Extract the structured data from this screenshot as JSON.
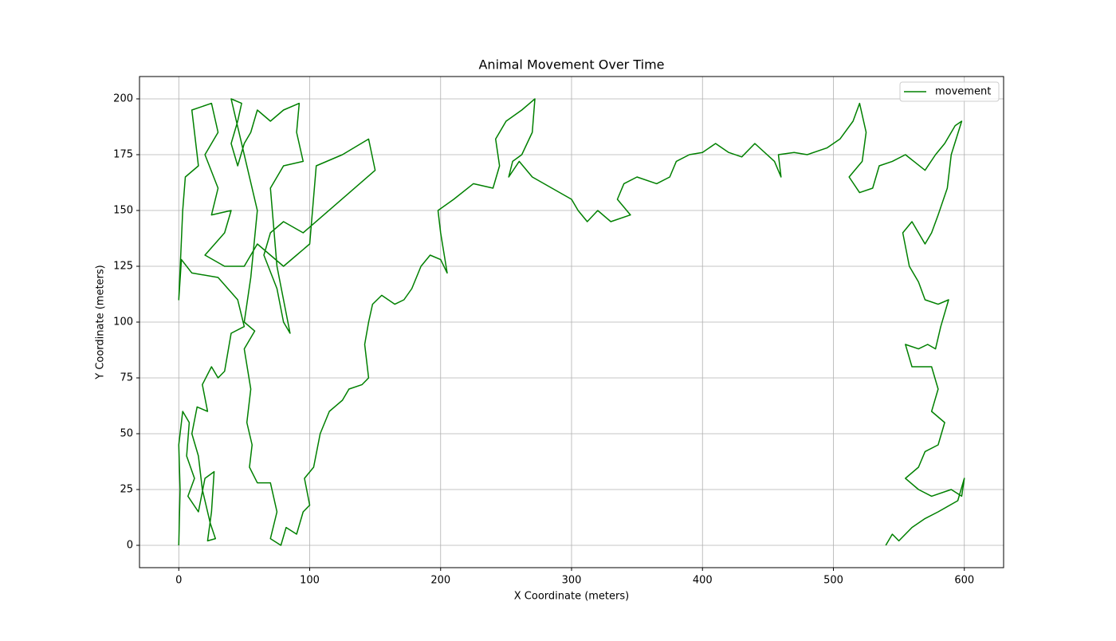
{
  "chart_data": {
    "type": "line",
    "title": "Animal Movement Over Time",
    "xlabel": "X Coordinate (meters)",
    "ylabel": "Y Coordinate (meters)",
    "xlim": [
      -30,
      630
    ],
    "ylim": [
      -10,
      210
    ],
    "xticks": [
      0,
      100,
      200,
      300,
      400,
      500,
      600
    ],
    "yticks": [
      0,
      25,
      50,
      75,
      100,
      125,
      150,
      175,
      200
    ],
    "grid": true,
    "legend": "upper right",
    "x": [
      0,
      1,
      0,
      3,
      8,
      6,
      12,
      7,
      15,
      20,
      27,
      25,
      22,
      28,
      24,
      18,
      15,
      10,
      14,
      22,
      18,
      25,
      30,
      35,
      40,
      50,
      45,
      30,
      10,
      2,
      0,
      3,
      5,
      15,
      10,
      25,
      30,
      20,
      30,
      25,
      40,
      35,
      20,
      35,
      50,
      60,
      70,
      80,
      90,
      100,
      105,
      125,
      145,
      150,
      95,
      80,
      70,
      65,
      75,
      80,
      85,
      80,
      75,
      70,
      80,
      95,
      90,
      92,
      80,
      70,
      60,
      55,
      50,
      45,
      40,
      45,
      48,
      40,
      60,
      55,
      50,
      58,
      50,
      55,
      52,
      56,
      54,
      60,
      70,
      75,
      70,
      78,
      82,
      90,
      95,
      100,
      96,
      103,
      108,
      115,
      125,
      130,
      140,
      145,
      142,
      145,
      148,
      155,
      165,
      172,
      178,
      185,
      192,
      200,
      205,
      200,
      198,
      210,
      225,
      240,
      245,
      242,
      250,
      262,
      272,
      270,
      262,
      255,
      252,
      260,
      270,
      285,
      300,
      305,
      312,
      320,
      330,
      345,
      335,
      340,
      350,
      365,
      375,
      380,
      390,
      400,
      410,
      420,
      430,
      440,
      455,
      460,
      458,
      470,
      480,
      495,
      505,
      515,
      520,
      525,
      522,
      512,
      520,
      530,
      535,
      545,
      555,
      570,
      578,
      585,
      593,
      598,
      590,
      587,
      580,
      575,
      570,
      565,
      560,
      553,
      558,
      565,
      570,
      580,
      588,
      582,
      578,
      572,
      565,
      555,
      560,
      575,
      580,
      575,
      585,
      580,
      570,
      565,
      555,
      565,
      575,
      590,
      598,
      600,
      595,
      580,
      570,
      560,
      550,
      545,
      540
    ],
    "series": [
      {
        "name": "movement",
        "color": "#008000",
        "values": [
          0,
          25,
          45,
          60,
          55,
          40,
          30,
          22,
          15,
          30,
          33,
          15,
          2,
          3,
          10,
          25,
          40,
          50,
          62,
          60,
          72,
          80,
          75,
          78,
          95,
          98,
          110,
          120,
          122,
          128,
          110,
          150,
          165,
          170,
          195,
          198,
          185,
          175,
          160,
          148,
          150,
          140,
          130,
          125,
          125,
          135,
          130,
          125,
          130,
          135,
          170,
          175,
          182,
          168,
          140,
          145,
          140,
          130,
          115,
          100,
          95,
          110,
          125,
          160,
          170,
          172,
          185,
          198,
          195,
          190,
          195,
          185,
          180,
          170,
          180,
          190,
          198,
          200,
          150,
          120,
          100,
          96,
          88,
          70,
          55,
          45,
          35,
          28,
          28,
          15,
          3,
          0,
          8,
          5,
          15,
          18,
          30,
          35,
          50,
          60,
          65,
          70,
          72,
          75,
          90,
          100,
          108,
          112,
          108,
          110,
          115,
          125,
          130,
          128,
          122,
          140,
          150,
          155,
          162,
          160,
          170,
          182,
          190,
          195,
          200,
          185,
          175,
          172,
          165,
          172,
          165,
          160,
          155,
          150,
          145,
          150,
          145,
          148,
          155,
          162,
          165,
          162,
          165,
          172,
          175,
          176,
          180,
          176,
          174,
          180,
          172,
          165,
          175,
          176,
          175,
          178,
          182,
          190,
          198,
          185,
          172,
          165,
          158,
          160,
          170,
          172,
          175,
          168,
          175,
          180,
          188,
          190,
          175,
          160,
          148,
          140,
          135,
          140,
          145,
          140,
          125,
          118,
          110,
          108,
          110,
          98,
          88,
          90,
          88,
          90,
          80,
          80,
          70,
          60,
          55,
          45,
          42,
          35,
          30,
          25,
          22,
          25,
          22,
          30,
          20,
          15,
          12,
          8,
          2,
          5,
          0
        ]
      }
    ]
  }
}
